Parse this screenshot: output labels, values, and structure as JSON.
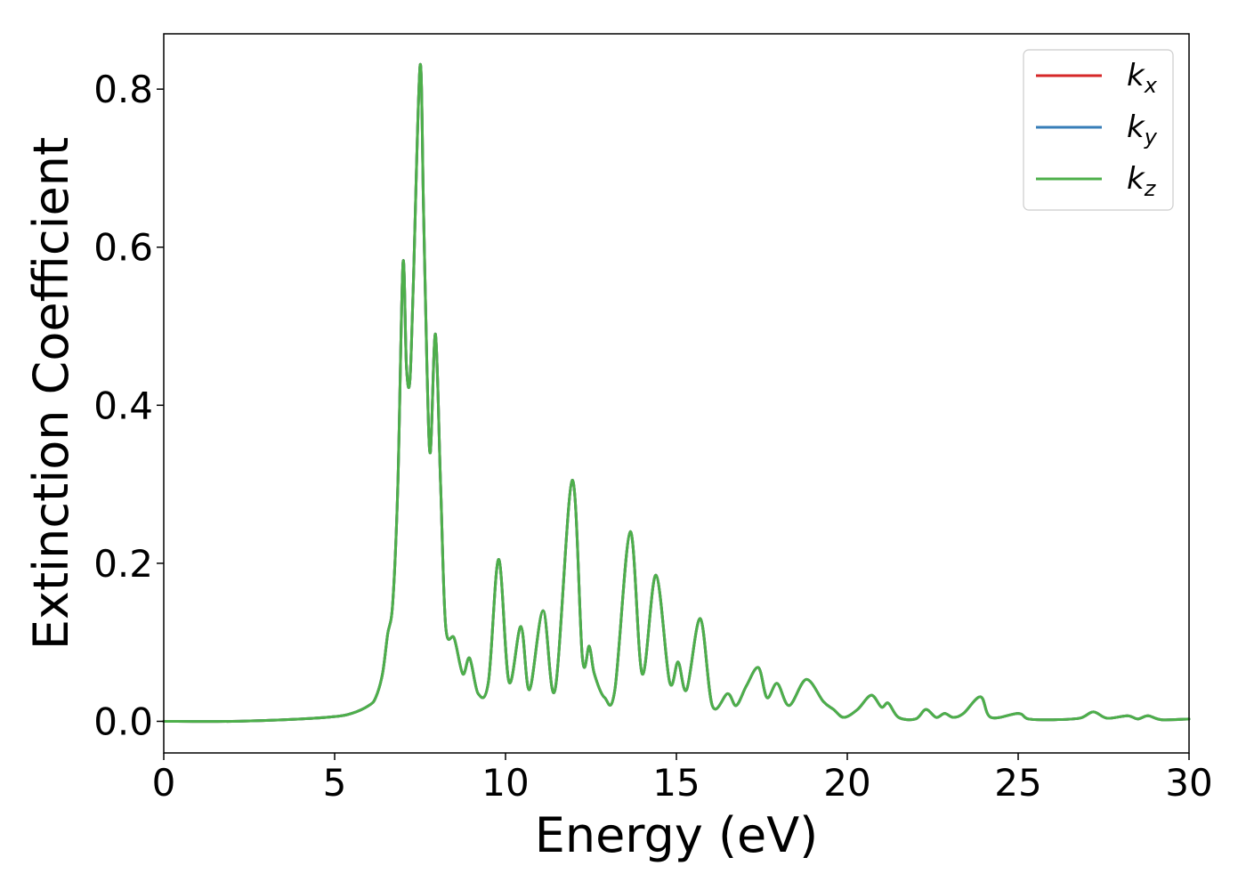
{
  "chart_data": {
    "type": "line",
    "title": "",
    "xlabel": "Energy (eV)",
    "ylabel": "Extinction Coefficient",
    "xlim": [
      0,
      30
    ],
    "ylim": [
      -0.04,
      0.87
    ],
    "xticks": [
      0,
      5,
      10,
      15,
      20,
      25,
      30
    ],
    "yticks": [
      0.0,
      0.2,
      0.4,
      0.6,
      0.8
    ],
    "grid": false,
    "legend_position": "top-right",
    "series": [
      {
        "name": "k",
        "subscript": "x",
        "color": "#d62728",
        "x": [
          0,
          2,
          4,
          5,
          5.5,
          6,
          6.2,
          6.4,
          6.55,
          6.7,
          6.85,
          7.0,
          7.1,
          7.2,
          7.3,
          7.5,
          7.6,
          7.7,
          7.8,
          7.95,
          8.1,
          8.25,
          8.5,
          8.75,
          8.95,
          9.2,
          9.5,
          9.8,
          10.1,
          10.45,
          10.7,
          11.1,
          11.45,
          11.95,
          12.25,
          12.45,
          12.6,
          12.9,
          13.2,
          13.65,
          14.0,
          14.4,
          14.8,
          15.05,
          15.3,
          15.7,
          16.05,
          16.5,
          16.75,
          17.05,
          17.4,
          17.65,
          17.95,
          18.3,
          18.8,
          19.3,
          19.6,
          19.9,
          20.3,
          20.7,
          21.0,
          21.2,
          21.5,
          22.0,
          22.3,
          22.6,
          22.85,
          23.1,
          23.4,
          23.9,
          24.2,
          25.0,
          25.3,
          26.0,
          26.8,
          27.2,
          27.6,
          28.2,
          28.5,
          28.8,
          29.2,
          30
        ],
        "y": [
          0.0,
          0.0,
          0.003,
          0.006,
          0.01,
          0.02,
          0.03,
          0.06,
          0.11,
          0.15,
          0.3,
          0.58,
          0.45,
          0.43,
          0.55,
          0.83,
          0.65,
          0.45,
          0.34,
          0.49,
          0.3,
          0.12,
          0.105,
          0.06,
          0.08,
          0.035,
          0.05,
          0.205,
          0.05,
          0.12,
          0.04,
          0.14,
          0.04,
          0.305,
          0.08,
          0.095,
          0.06,
          0.03,
          0.04,
          0.24,
          0.06,
          0.185,
          0.05,
          0.075,
          0.04,
          0.13,
          0.02,
          0.035,
          0.02,
          0.045,
          0.068,
          0.03,
          0.048,
          0.02,
          0.053,
          0.025,
          0.015,
          0.005,
          0.015,
          0.033,
          0.018,
          0.023,
          0.005,
          0.003,
          0.015,
          0.005,
          0.01,
          0.005,
          0.01,
          0.031,
          0.005,
          0.01,
          0.003,
          0.002,
          0.004,
          0.012,
          0.004,
          0.007,
          0.003,
          0.007,
          0.002,
          0.003
        ]
      },
      {
        "name": "k",
        "subscript": "y",
        "color": "#377eb8",
        "x": [
          0,
          2,
          4,
          5,
          5.5,
          6,
          6.2,
          6.4,
          6.55,
          6.7,
          6.85,
          7.0,
          7.1,
          7.2,
          7.3,
          7.5,
          7.6,
          7.7,
          7.8,
          7.95,
          8.1,
          8.25,
          8.5,
          8.75,
          8.95,
          9.2,
          9.5,
          9.8,
          10.1,
          10.45,
          10.7,
          11.1,
          11.45,
          11.95,
          12.25,
          12.45,
          12.6,
          12.9,
          13.2,
          13.65,
          14.0,
          14.4,
          14.8,
          15.05,
          15.3,
          15.7,
          16.05,
          16.5,
          16.75,
          17.05,
          17.4,
          17.65,
          17.95,
          18.3,
          18.8,
          19.3,
          19.6,
          19.9,
          20.3,
          20.7,
          21.0,
          21.2,
          21.5,
          22.0,
          22.3,
          22.6,
          22.85,
          23.1,
          23.4,
          23.9,
          24.2,
          25.0,
          25.3,
          26.0,
          26.8,
          27.2,
          27.6,
          28.2,
          28.5,
          28.8,
          29.2,
          30
        ],
        "y": [
          0.0,
          0.0,
          0.003,
          0.006,
          0.01,
          0.02,
          0.03,
          0.06,
          0.11,
          0.15,
          0.3,
          0.58,
          0.45,
          0.43,
          0.55,
          0.83,
          0.65,
          0.45,
          0.34,
          0.49,
          0.3,
          0.12,
          0.105,
          0.06,
          0.08,
          0.035,
          0.05,
          0.205,
          0.05,
          0.12,
          0.04,
          0.14,
          0.04,
          0.305,
          0.08,
          0.095,
          0.06,
          0.03,
          0.04,
          0.24,
          0.06,
          0.185,
          0.05,
          0.075,
          0.04,
          0.13,
          0.02,
          0.035,
          0.02,
          0.045,
          0.068,
          0.03,
          0.048,
          0.02,
          0.053,
          0.025,
          0.015,
          0.005,
          0.015,
          0.033,
          0.018,
          0.023,
          0.005,
          0.003,
          0.015,
          0.005,
          0.01,
          0.005,
          0.01,
          0.031,
          0.005,
          0.01,
          0.003,
          0.002,
          0.004,
          0.012,
          0.004,
          0.007,
          0.003,
          0.007,
          0.002,
          0.003
        ]
      },
      {
        "name": "k",
        "subscript": "z",
        "color": "#4daf4a",
        "x": [
          0,
          2,
          4,
          5,
          5.5,
          6,
          6.2,
          6.4,
          6.55,
          6.7,
          6.85,
          7.0,
          7.1,
          7.2,
          7.3,
          7.5,
          7.6,
          7.7,
          7.8,
          7.95,
          8.1,
          8.25,
          8.5,
          8.75,
          8.95,
          9.2,
          9.5,
          9.8,
          10.1,
          10.45,
          10.7,
          11.1,
          11.45,
          11.95,
          12.25,
          12.45,
          12.6,
          12.9,
          13.2,
          13.65,
          14.0,
          14.4,
          14.8,
          15.05,
          15.3,
          15.7,
          16.05,
          16.5,
          16.75,
          17.05,
          17.4,
          17.65,
          17.95,
          18.3,
          18.8,
          19.3,
          19.6,
          19.9,
          20.3,
          20.7,
          21.0,
          21.2,
          21.5,
          22.0,
          22.3,
          22.6,
          22.85,
          23.1,
          23.4,
          23.9,
          24.2,
          25.0,
          25.3,
          26.0,
          26.8,
          27.2,
          27.6,
          28.2,
          28.5,
          28.8,
          29.2,
          30
        ],
        "y": [
          0.0,
          0.0,
          0.003,
          0.006,
          0.01,
          0.02,
          0.03,
          0.06,
          0.11,
          0.15,
          0.3,
          0.58,
          0.45,
          0.43,
          0.55,
          0.83,
          0.65,
          0.45,
          0.34,
          0.49,
          0.3,
          0.12,
          0.105,
          0.06,
          0.08,
          0.035,
          0.05,
          0.205,
          0.05,
          0.12,
          0.04,
          0.14,
          0.04,
          0.305,
          0.08,
          0.095,
          0.06,
          0.03,
          0.04,
          0.24,
          0.06,
          0.185,
          0.05,
          0.075,
          0.04,
          0.13,
          0.02,
          0.035,
          0.02,
          0.045,
          0.068,
          0.03,
          0.048,
          0.02,
          0.053,
          0.025,
          0.015,
          0.005,
          0.015,
          0.033,
          0.018,
          0.023,
          0.005,
          0.003,
          0.015,
          0.005,
          0.01,
          0.005,
          0.01,
          0.031,
          0.005,
          0.01,
          0.003,
          0.002,
          0.004,
          0.012,
          0.004,
          0.007,
          0.003,
          0.007,
          0.002,
          0.003
        ]
      }
    ]
  }
}
